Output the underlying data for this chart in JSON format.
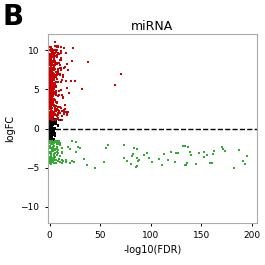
{
  "title": "miRNA",
  "panel_label": "B",
  "xlabel": "-log10(FDR)",
  "ylabel": "logFC",
  "xlim": [
    -2,
    205
  ],
  "ylim": [
    -12,
    12
  ],
  "xticks": [
    0,
    50,
    100,
    150,
    200
  ],
  "yticks": [
    -10,
    -5,
    0,
    5,
    10
  ],
  "dashed_line_y": 0,
  "background_color": "#ffffff",
  "red_color": "#cc0000",
  "green_color": "#33aa33",
  "black_color": "#000000",
  "point_size": 3,
  "seed": 42
}
